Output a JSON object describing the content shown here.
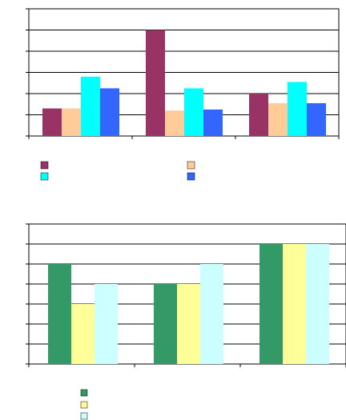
{
  "chart_data": [
    {
      "type": "bar",
      "categories": [
        "",
        "",
        ""
      ],
      "series": [
        {
          "values": [
            1.3,
            5.0,
            2.0
          ],
          "color": "#993366"
        },
        {
          "values": [
            1.3,
            1.2,
            1.55
          ],
          "color": "#FFCC99"
        },
        {
          "values": [
            2.8,
            2.25,
            2.55
          ],
          "color": "#00FFFF"
        },
        {
          "values": [
            2.25,
            1.25,
            1.55
          ],
          "color": "#3366FF"
        }
      ],
      "ylim": [
        0,
        6
      ],
      "grid": true,
      "legend_placement": "bottom"
    },
    {
      "type": "bar",
      "categories": [
        "",
        "",
        ""
      ],
      "series": [
        {
          "values": [
            5,
            4,
            6
          ],
          "color": "#339966"
        },
        {
          "values": [
            3,
            4,
            6
          ],
          "color": "#FFFF99"
        },
        {
          "values": [
            4,
            5,
            6
          ],
          "color": "#CCFFFF"
        }
      ],
      "ylim": [
        0,
        7
      ],
      "grid": true,
      "legend_placement": "bottom-left"
    }
  ]
}
